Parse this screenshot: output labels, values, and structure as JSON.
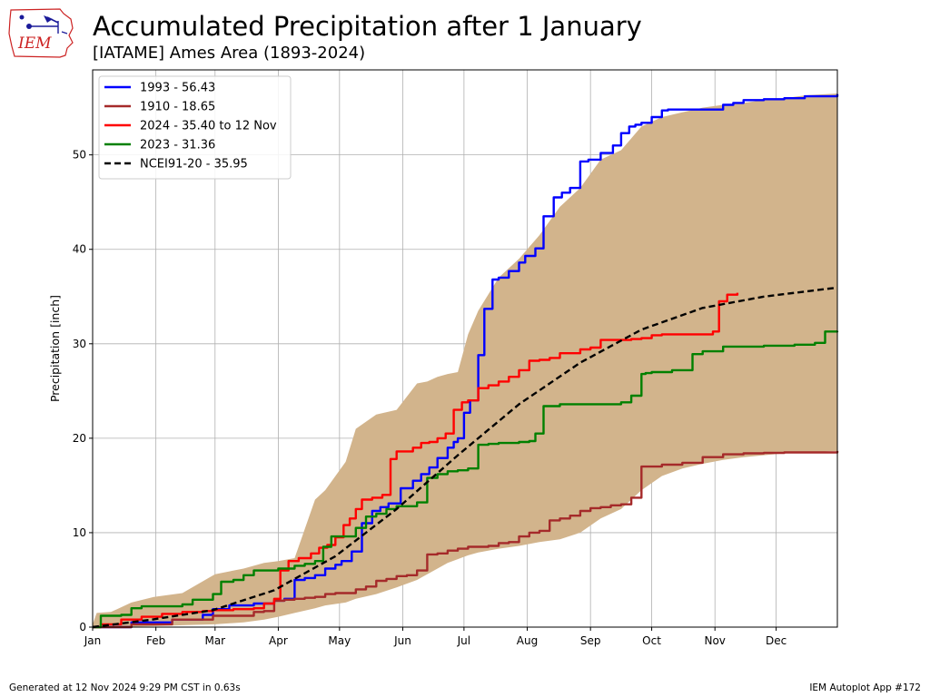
{
  "header": {
    "title": "Accumulated Precipitation after 1 January",
    "subtitle": "[IATAME] Ames Area (1893-2024)"
  },
  "logo": {
    "text": "IEM"
  },
  "footer": {
    "generated": "Generated at 12 Nov 2024 9:29 PM CST in 0.63s",
    "app": "IEM Autoplot App #172"
  },
  "colors": {
    "band": "#d2b48c",
    "grid": "#b0b0b0",
    "logo_red": "#cc2222",
    "logo_blue": "#1a1a99"
  },
  "chart_data": {
    "type": "line",
    "xlabel": "",
    "ylabel": "Precipitation [inch]",
    "xlim": [
      1,
      366
    ],
    "ylim": [
      0,
      59
    ],
    "x_units": "day of year",
    "grid": true,
    "legend_position": "top-left",
    "xticks": [
      {
        "label": "Jan",
        "day": 1
      },
      {
        "label": "Feb",
        "day": 32
      },
      {
        "label": "Mar",
        "day": 61
      },
      {
        "label": "Apr",
        "day": 92
      },
      {
        "label": "May",
        "day": 122
      },
      {
        "label": "Jun",
        "day": 153
      },
      {
        "label": "Jul",
        "day": 183
      },
      {
        "label": "Aug",
        "day": 214
      },
      {
        "label": "Sep",
        "day": 245
      },
      {
        "label": "Oct",
        "day": 275
      },
      {
        "label": "Nov",
        "day": 306
      },
      {
        "label": "Dec",
        "day": 336
      }
    ],
    "yticks": [
      0,
      10,
      20,
      30,
      40,
      50
    ],
    "range_band": {
      "description": "min/max envelope",
      "x": [
        1,
        3,
        10,
        20,
        31,
        45,
        61,
        75,
        85,
        92,
        100,
        110,
        115,
        125,
        130,
        140,
        150,
        160,
        165,
        170,
        175,
        180,
        185,
        190,
        200,
        210,
        220,
        230,
        240,
        250,
        260,
        270,
        280,
        290,
        300,
        310,
        320,
        330,
        340,
        350,
        366
      ],
      "upper": [
        0.3,
        1.5,
        1.6,
        2.6,
        3.2,
        3.6,
        5.6,
        6.2,
        6.8,
        7.0,
        7.3,
        13.5,
        14.5,
        17.5,
        21.0,
        22.5,
        23.0,
        25.8,
        26.0,
        26.5,
        26.8,
        27.0,
        31.0,
        33.5,
        37.0,
        39.0,
        41.5,
        44.5,
        46.5,
        49.5,
        50.5,
        53.0,
        54.0,
        54.5,
        55.0,
        55.3,
        55.5,
        55.8,
        56.0,
        56.3,
        56.5
      ],
      "lower": [
        0.0,
        0.0,
        0.0,
        0.05,
        0.1,
        0.2,
        0.3,
        0.5,
        0.8,
        1.1,
        1.5,
        2.0,
        2.3,
        2.6,
        3.0,
        3.5,
        4.2,
        5.0,
        5.6,
        6.2,
        6.8,
        7.2,
        7.6,
        7.9,
        8.3,
        8.6,
        9.0,
        9.3,
        10.0,
        11.5,
        12.5,
        14.5,
        16.0,
        16.8,
        17.3,
        17.7,
        18.0,
        18.2,
        18.4,
        18.5,
        18.65
      ]
    },
    "series": [
      {
        "name": "1993 - 56.43",
        "color": "#0000ff",
        "dash": false,
        "x": [
          1,
          20,
          40,
          55,
          60,
          68,
          80,
          90,
          95,
          100,
          105,
          110,
          115,
          120,
          123,
          128,
          133,
          138,
          142,
          146,
          152,
          158,
          162,
          166,
          170,
          175,
          178,
          180,
          183,
          186,
          190,
          193,
          197,
          200,
          205,
          210,
          213,
          218,
          222,
          227,
          231,
          235,
          240,
          244,
          250,
          256,
          260,
          264,
          267,
          270,
          275,
          280,
          283,
          290,
          300,
          310,
          315,
          320,
          330,
          340,
          350,
          366
        ],
        "y": [
          0,
          0.5,
          0.8,
          1.3,
          1.9,
          2.3,
          2.5,
          2.8,
          3.0,
          5.0,
          5.2,
          5.5,
          6.2,
          6.6,
          7.0,
          8.0,
          11.0,
          12.3,
          12.7,
          13.1,
          14.7,
          15.5,
          16.2,
          16.9,
          17.9,
          19.0,
          19.6,
          20.0,
          22.7,
          24.0,
          28.8,
          33.7,
          36.8,
          37.0,
          37.7,
          38.6,
          39.3,
          40.1,
          43.5,
          45.5,
          46.0,
          46.5,
          49.3,
          49.5,
          50.2,
          51.0,
          52.3,
          53.0,
          53.2,
          53.4,
          54.0,
          54.7,
          54.8,
          54.8,
          54.8,
          55.3,
          55.5,
          55.8,
          55.9,
          56.0,
          56.2,
          56.43
        ]
      },
      {
        "name": "1910 - 18.65",
        "color": "#a52a2a",
        "dash": false,
        "x": [
          1,
          20,
          40,
          60,
          80,
          85,
          90,
          95,
          100,
          105,
          110,
          115,
          120,
          125,
          130,
          135,
          140,
          145,
          150,
          155,
          160,
          165,
          170,
          175,
          180,
          185,
          190,
          195,
          200,
          205,
          210,
          215,
          220,
          225,
          230,
          235,
          240,
          245,
          250,
          255,
          260,
          265,
          270,
          280,
          290,
          300,
          310,
          320,
          330,
          340,
          366
        ],
        "y": [
          0,
          0.3,
          0.8,
          1.2,
          1.6,
          1.7,
          2.8,
          2.9,
          3.0,
          3.1,
          3.2,
          3.5,
          3.6,
          3.6,
          4.0,
          4.3,
          4.9,
          5.1,
          5.4,
          5.5,
          6.0,
          7.7,
          7.8,
          8.1,
          8.3,
          8.5,
          8.5,
          8.6,
          8.9,
          9.0,
          9.6,
          10.0,
          10.2,
          11.3,
          11.5,
          11.8,
          12.3,
          12.6,
          12.7,
          12.9,
          13.0,
          13.7,
          17.0,
          17.2,
          17.4,
          18.0,
          18.3,
          18.4,
          18.45,
          18.5,
          18.65
        ]
      },
      {
        "name": "2024 - 35.40 to 12 Nov",
        "color": "#ff0000",
        "dash": false,
        "x": [
          1,
          5,
          15,
          25,
          35,
          45,
          55,
          60,
          70,
          80,
          85,
          90,
          93,
          97,
          102,
          108,
          112,
          116,
          120,
          124,
          127,
          130,
          133,
          138,
          143,
          147,
          150,
          158,
          162,
          166,
          170,
          174,
          178,
          182,
          185,
          190,
          195,
          200,
          205,
          210,
          215,
          220,
          225,
          230,
          240,
          245,
          250,
          260,
          265,
          270,
          275,
          280,
          290,
          300,
          305,
          308,
          312,
          317
        ],
        "y": [
          0,
          0.3,
          0.8,
          1.1,
          1.4,
          1.6,
          1.7,
          1.8,
          1.9,
          2.0,
          2.5,
          3.0,
          6.0,
          7.0,
          7.3,
          7.8,
          8.4,
          8.7,
          9.5,
          10.8,
          11.5,
          12.5,
          13.5,
          13.7,
          14.0,
          17.8,
          18.6,
          19.0,
          19.5,
          19.6,
          20.0,
          20.5,
          23.0,
          23.8,
          24.0,
          25.3,
          25.6,
          26.0,
          26.5,
          27.2,
          28.2,
          28.3,
          28.5,
          29.0,
          29.4,
          29.6,
          30.4,
          30.4,
          30.5,
          30.6,
          30.9,
          31.0,
          31.0,
          31.0,
          31.3,
          34.5,
          35.2,
          35.4
        ]
      },
      {
        "name": "2023 - 31.36",
        "color": "#008000",
        "dash": false,
        "x": [
          1,
          5,
          15,
          20,
          25,
          30,
          45,
          50,
          60,
          64,
          70,
          75,
          80,
          92,
          100,
          105,
          110,
          114,
          118,
          125,
          130,
          135,
          140,
          145,
          150,
          155,
          160,
          165,
          170,
          175,
          180,
          185,
          190,
          195,
          200,
          210,
          215,
          218,
          222,
          230,
          240,
          245,
          250,
          260,
          265,
          270,
          272,
          275,
          285,
          295,
          300,
          310,
          320,
          330,
          345,
          355,
          360,
          366
        ],
        "y": [
          0,
          1.2,
          1.3,
          2.0,
          2.2,
          2.2,
          2.4,
          2.9,
          3.5,
          4.8,
          5.0,
          5.5,
          6.0,
          6.2,
          6.5,
          6.7,
          7.0,
          8.5,
          9.6,
          9.6,
          10.5,
          11.7,
          12.0,
          12.5,
          12.8,
          12.8,
          13.2,
          15.8,
          16.2,
          16.5,
          16.6,
          16.8,
          19.3,
          19.4,
          19.5,
          19.6,
          19.7,
          20.5,
          23.4,
          23.6,
          23.6,
          23.6,
          23.6,
          23.8,
          24.5,
          26.8,
          26.9,
          27.0,
          27.2,
          28.9,
          29.2,
          29.7,
          29.7,
          29.8,
          29.9,
          30.1,
          31.3,
          31.36
        ]
      },
      {
        "name": "NCEI91-20 - 35.95",
        "color": "#000000",
        "dash": true,
        "x": [
          1,
          30,
          60,
          90,
          120,
          150,
          180,
          210,
          240,
          270,
          300,
          330,
          366
        ],
        "y": [
          0,
          0.8,
          1.8,
          3.9,
          7.5,
          12.5,
          18.2,
          23.6,
          28.0,
          31.5,
          33.8,
          35.0,
          35.95
        ]
      }
    ]
  }
}
